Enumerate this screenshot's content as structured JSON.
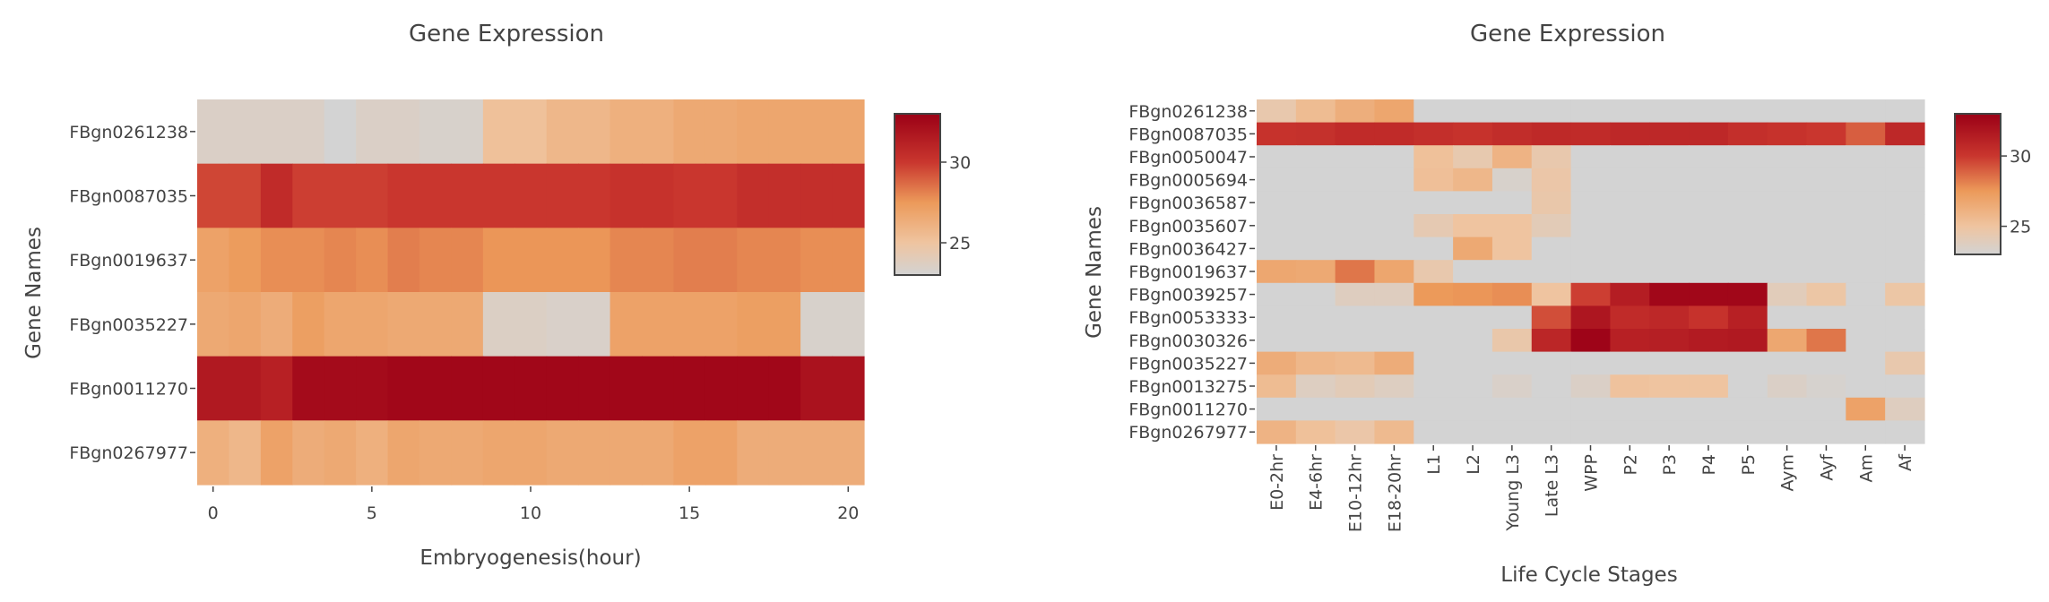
{
  "colorscale": [
    [
      0.0,
      "#d3d3d3"
    ],
    [
      0.2,
      "#efc4a0"
    ],
    [
      0.45,
      "#ec9a5a"
    ],
    [
      0.7,
      "#c9362e"
    ],
    [
      1.0,
      "#9b0016"
    ]
  ],
  "chart_data": [
    {
      "type": "heatmap",
      "title": "Gene Expression",
      "xlabel": "Embryogenesis(hour)",
      "ylabel": "Gene Names",
      "x_ticks": [
        0,
        5,
        10,
        15,
        20
      ],
      "x": [
        0,
        1,
        2,
        3,
        4,
        5,
        6,
        7,
        8,
        9,
        10,
        11,
        12,
        13,
        14,
        15,
        16,
        17,
        18,
        19,
        20
      ],
      "y": [
        "FBgn0261238",
        "FBgn0087035",
        "FBgn0019637",
        "FBgn0035227",
        "FBgn0011270",
        "FBgn0267977"
      ],
      "z": [
        [
          23.5,
          23.5,
          23.5,
          23.5,
          23.0,
          23.5,
          23.5,
          23.3,
          23.3,
          25.2,
          25.2,
          25.8,
          25.8,
          26.2,
          26.2,
          26.6,
          26.6,
          26.8,
          26.8,
          26.8,
          26.8
        ],
        [
          29.6,
          29.6,
          30.6,
          29.8,
          29.8,
          29.8,
          30.0,
          30.0,
          30.0,
          30.0,
          30.0,
          30.0,
          30.0,
          30.2,
          30.2,
          30.0,
          30.0,
          30.4,
          30.4,
          30.4,
          30.4
        ],
        [
          27.0,
          27.4,
          27.8,
          27.8,
          28.0,
          27.8,
          28.2,
          28.0,
          28.0,
          27.6,
          27.6,
          27.6,
          27.6,
          28.0,
          28.0,
          28.2,
          28.2,
          28.0,
          28.0,
          27.8,
          27.8
        ],
        [
          26.6,
          26.8,
          26.4,
          27.2,
          26.8,
          26.8,
          26.6,
          26.6,
          26.6,
          23.6,
          23.6,
          23.4,
          23.4,
          27.0,
          27.0,
          27.0,
          27.0,
          27.2,
          27.2,
          23.3,
          23.3
        ],
        [
          31.6,
          31.6,
          31.2,
          32.4,
          32.4,
          32.4,
          32.6,
          32.6,
          32.6,
          32.6,
          32.6,
          32.6,
          32.6,
          32.6,
          32.6,
          32.6,
          32.6,
          32.6,
          32.6,
          32.0,
          32.0
        ],
        [
          26.2,
          25.8,
          27.0,
          26.4,
          26.6,
          26.2,
          26.8,
          26.6,
          26.6,
          26.8,
          26.8,
          26.6,
          26.6,
          26.6,
          26.6,
          27.0,
          27.0,
          26.4,
          26.4,
          26.4,
          26.4
        ]
      ],
      "zmin": 23,
      "zmax": 33,
      "colorbar_ticks": [
        25,
        30
      ],
      "grid": false
    },
    {
      "type": "heatmap",
      "title": "Gene Expression",
      "xlabel": "Life Cycle Stages",
      "ylabel": "Gene Names",
      "x": [
        "E0-2hr",
        "E4-6hr",
        "E10-12hr",
        "E18-20hr",
        "L1",
        "L2",
        "Young L3",
        "Late L3",
        "WPP",
        "P2",
        "P3",
        "P4",
        "P5",
        "Aym",
        "Ayf",
        "Am",
        "Af"
      ],
      "y": [
        "FBgn0261238",
        "FBgn0087035",
        "FBgn0050047",
        "FBgn0005694",
        "FBgn0036587",
        "FBgn0035607",
        "FBgn0036427",
        "FBgn0019637",
        "FBgn0039257",
        "FBgn0053333",
        "FBgn0030326",
        "FBgn0035227",
        "FBgn0013275",
        "FBgn0011270",
        "FBgn0267977"
      ],
      "z": [
        [
          24.5,
          25.5,
          26.3,
          26.8,
          23,
          23,
          23,
          23,
          23,
          23,
          23,
          23,
          23,
          23,
          23,
          23,
          23
        ],
        [
          30.2,
          30.3,
          30.6,
          30.6,
          30.4,
          30.2,
          30.5,
          30.7,
          30.6,
          30.8,
          30.8,
          30.8,
          30.4,
          30.2,
          30.0,
          29.0,
          30.8
        ],
        [
          23,
          23,
          23,
          23,
          25.2,
          24.4,
          26.0,
          24.5,
          23,
          23,
          23,
          23,
          23,
          23,
          23,
          23,
          23
        ],
        [
          23,
          23,
          23,
          23,
          25.3,
          25.8,
          23.3,
          24.7,
          23,
          23,
          23,
          23,
          23,
          23,
          23,
          23,
          23
        ],
        [
          23,
          23,
          23,
          23,
          23,
          23,
          23,
          24.6,
          23,
          23,
          23,
          23,
          23,
          23,
          23,
          23,
          23
        ],
        [
          23,
          23,
          23,
          23,
          24.3,
          25.0,
          25.0,
          24.1,
          23,
          23,
          23,
          23,
          23,
          23,
          23,
          23,
          23
        ],
        [
          23,
          23,
          23,
          23,
          23,
          26.6,
          25.0,
          23,
          23,
          23,
          23,
          23,
          23,
          23,
          23,
          23,
          23
        ],
        [
          26.7,
          26.6,
          28.4,
          26.8,
          24.5,
          23,
          23,
          23,
          23,
          23,
          23,
          23,
          23,
          23,
          23,
          23,
          23
        ],
        [
          23,
          23,
          23.8,
          23.8,
          27.5,
          27.6,
          27.8,
          25.0,
          29.8,
          31.4,
          32.6,
          32.6,
          32.6,
          24.0,
          24.8,
          23,
          24.8
        ],
        [
          23,
          23,
          23,
          23,
          23,
          23,
          23,
          29.4,
          31.8,
          30.6,
          30.8,
          30.2,
          31.2,
          23,
          23,
          23,
          23
        ],
        [
          23,
          23,
          23,
          23,
          23,
          23,
          24.6,
          30.9,
          32.8,
          31.2,
          31.3,
          31.5,
          31.6,
          26.7,
          28.4,
          23,
          23
        ],
        [
          26.4,
          25.8,
          25.6,
          26.4,
          23,
          23,
          23,
          23,
          23,
          23,
          23,
          23,
          23,
          23,
          23,
          23,
          24.5
        ],
        [
          25.5,
          23.7,
          24.1,
          23.7,
          23,
          23,
          23.4,
          23,
          23.5,
          25.1,
          25.0,
          25.0,
          23,
          23.5,
          23.2,
          23,
          23
        ],
        [
          23,
          23,
          23,
          23,
          23,
          23,
          23,
          23,
          23,
          23,
          23,
          23,
          23,
          23,
          23,
          27.0,
          23.8
        ],
        [
          26.0,
          25.2,
          24.7,
          25.6,
          23,
          23,
          23,
          23,
          23,
          23,
          23,
          23,
          23,
          23,
          23,
          23,
          23
        ]
      ],
      "zmin": 23,
      "zmax": 33,
      "colorbar_ticks": [
        25,
        30
      ],
      "grid": false
    }
  ]
}
